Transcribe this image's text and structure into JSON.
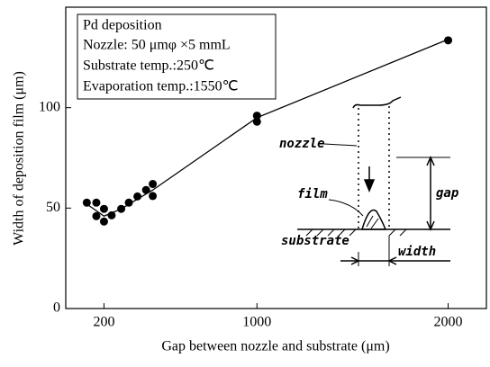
{
  "chart_data": {
    "type": "scatter",
    "x_label": "Gap between nozzle and substrate (μm)",
    "y_label": "Width of deposition film (μm)",
    "xlim": [
      0,
      2200
    ],
    "ylim": [
      0,
      150
    ],
    "xticks": [
      200,
      1000,
      2000
    ],
    "yticks": [
      0,
      50,
      100
    ],
    "series": [
      {
        "color": "#000000",
        "mode": "markers",
        "x": [
          110,
          160,
          160,
          200,
          200,
          240,
          290,
          330,
          375,
          420,
          455,
          455,
          1000,
          1000,
          2000
        ],
        "values": [
          52.7,
          52.7,
          46,
          49.6,
          43.3,
          46.4,
          49.6,
          52.7,
          55.8,
          59,
          62,
          56,
          96,
          93,
          133.5
        ]
      },
      {
        "color": "#000000",
        "mode": "line",
        "x": [
          110,
          200,
          290,
          455,
          1000,
          2000
        ],
        "values": [
          52,
          46,
          49.6,
          59,
          95,
          134
        ]
      }
    ],
    "legend_box": [
      "Pd deposition",
      "Nozzle: 50 μmφ ×5 mmL",
      "Substrate temp.:250℃",
      "Evaporation temp.:1550℃"
    ],
    "diagram_labels": {
      "nozzle": "nozzle",
      "film": "film",
      "substrate": "substrate",
      "gap": "gap",
      "width": "width"
    }
  }
}
